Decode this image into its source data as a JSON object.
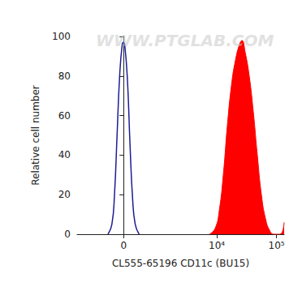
{
  "chart_data": {
    "type": "histogram",
    "xlabel": "CL555-65196 CD11c (BU15)",
    "ylabel": "Relative cell number",
    "annotations": [
      "WWW.PTGLAB.COM"
    ],
    "xlim": [
      -1600,
      134000
    ],
    "xticks": [
      0,
      {
        "value": 10000,
        "label": "10⁴"
      },
      {
        "value": 100000,
        "label": "10⁵"
      }
    ],
    "ylim": [
      0,
      100
    ],
    "yticks": [
      0,
      20,
      40,
      60,
      80,
      100
    ],
    "grid": false,
    "series": [
      {
        "type": "line",
        "color": "#1c1c96",
        "x": [
          -350,
          -256,
          -196,
          -139,
          -83,
          -28,
          0,
          28,
          83,
          139,
          196,
          256,
          350
        ],
        "values": [
          0,
          5,
          20,
          50,
          80,
          96,
          97,
          95,
          78,
          45,
          18,
          5,
          0
        ]
      },
      {
        "type": "area",
        "color": "#ff0000",
        "x": [
          7550,
          9390,
          10990,
          12840,
          15020,
          17550,
          20520,
          23990,
          26350,
          29870,
          34900,
          40810,
          47700,
          55800,
          65200,
          76300,
          89200,
          114400,
          134000
        ],
        "values": [
          0,
          3,
          12,
          30,
          55,
          75,
          88,
          96,
          98,
          92,
          80,
          62,
          40,
          20,
          8,
          2,
          0,
          0,
          6
        ]
      }
    ]
  }
}
